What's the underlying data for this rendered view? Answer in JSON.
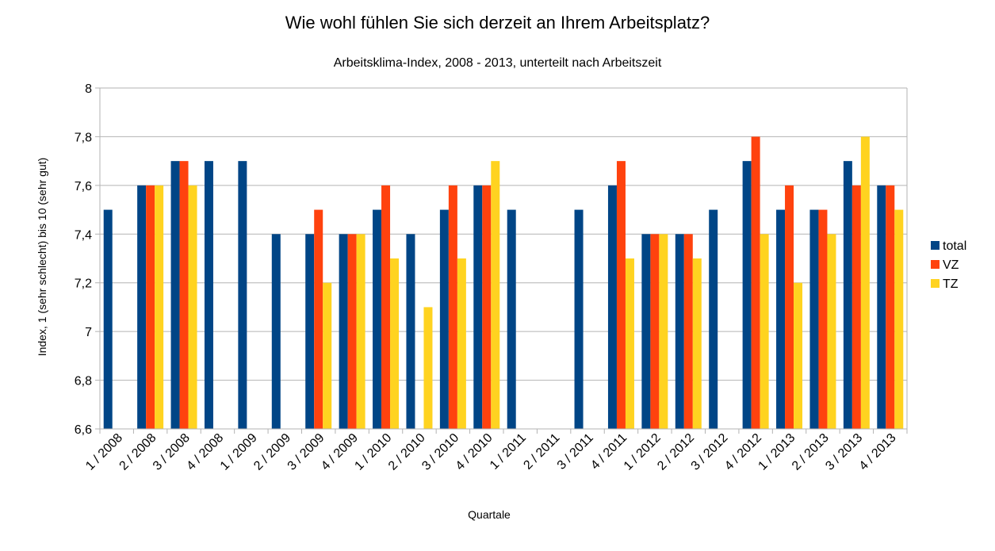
{
  "chart_data": {
    "type": "bar",
    "title": "Wie wohl fühlen Sie sich derzeit an Ihrem Arbeitsplatz?",
    "subtitle": "Arbeitsklima-Index, 2008 - 2013, unterteilt nach Arbeitszeit",
    "xlabel": "Quartale",
    "ylabel": "Index, 1 (sehr schlecht) bis 10 (sehr gut)",
    "ylim": [
      6.6,
      8
    ],
    "yticks": [
      "6,6",
      "6,8",
      "7",
      "7,2",
      "7,4",
      "7,6",
      "7,8",
      "8"
    ],
    "grid": true,
    "legend_position": "right",
    "categories": [
      "1 / 2008",
      "2 / 2008",
      "3 / 2008",
      "4 / 2008",
      "1 / 2009",
      "2 / 2009",
      "3 / 2009",
      "4 / 2009",
      "1 / 2010",
      "2 / 2010",
      "3 / 2010",
      "4 / 2010",
      "1 / 2011",
      "2 / 2011",
      "3 / 2011",
      "4 / 2011",
      "1 / 2012",
      "2 / 2012",
      "3 / 2012",
      "4 / 2012",
      "1 / 2013",
      "2 / 2013",
      "3 / 2013",
      "4 / 2013"
    ],
    "series": [
      {
        "name": "total",
        "color": "#004586",
        "values": [
          7.5,
          7.6,
          7.7,
          7.7,
          7.7,
          7.4,
          7.4,
          7.4,
          7.5,
          7.4,
          7.5,
          7.6,
          7.5,
          null,
          7.5,
          7.6,
          7.4,
          7.4,
          7.5,
          7.7,
          7.5,
          7.5,
          7.7,
          7.6
        ]
      },
      {
        "name": "VZ",
        "color": "#ff420e",
        "values": [
          null,
          7.6,
          7.7,
          null,
          null,
          null,
          7.5,
          7.4,
          7.6,
          null,
          7.6,
          7.6,
          null,
          null,
          null,
          7.7,
          7.4,
          7.4,
          null,
          7.8,
          7.6,
          7.5,
          7.6,
          7.6
        ]
      },
      {
        "name": "TZ",
        "color": "#ffd320",
        "values": [
          null,
          7.6,
          7.6,
          null,
          null,
          null,
          7.2,
          7.4,
          7.3,
          7.1,
          7.3,
          7.7,
          null,
          null,
          null,
          7.3,
          7.4,
          7.3,
          null,
          7.4,
          7.2,
          7.4,
          7.8,
          7.5
        ]
      }
    ]
  }
}
